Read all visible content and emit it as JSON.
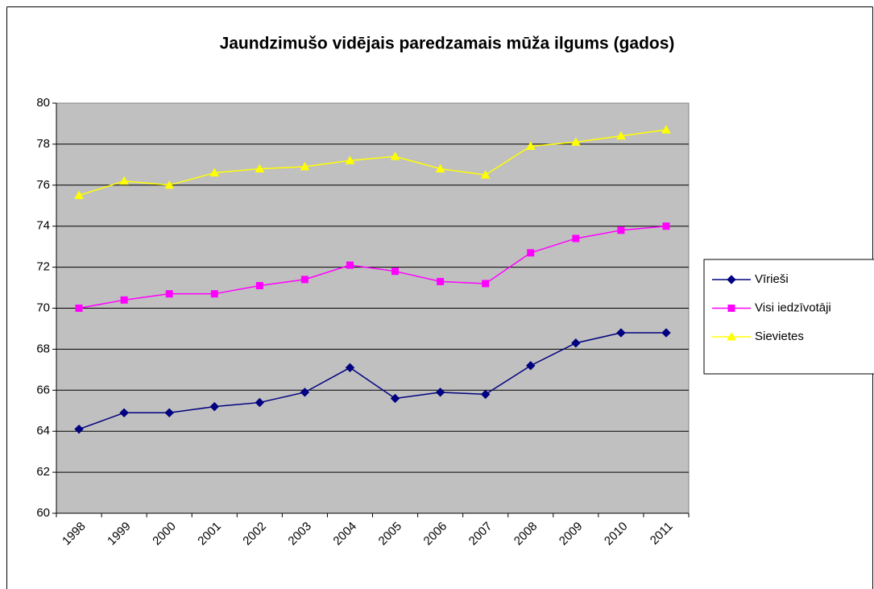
{
  "chart_data": {
    "type": "line",
    "title": "Jaundzimušo vidējais paredzamais mūža ilgums (gados)",
    "categories": [
      "1998",
      "1999",
      "2000",
      "2001",
      "2002",
      "2003",
      "2004",
      "2005",
      "2006",
      "2007",
      "2008",
      "2009",
      "2010",
      "2011"
    ],
    "series": [
      {
        "name": "Vīrieši",
        "color": "#000080",
        "marker": "diamond",
        "values": [
          64.1,
          64.9,
          64.9,
          65.2,
          65.4,
          65.9,
          67.1,
          65.6,
          65.9,
          65.8,
          67.2,
          68.3,
          68.8,
          68.8
        ]
      },
      {
        "name": "Visi iedzīvotāji",
        "color": "#ff00ff",
        "marker": "square",
        "values": [
          70.0,
          70.4,
          70.7,
          70.7,
          71.1,
          71.4,
          72.1,
          71.8,
          71.3,
          71.2,
          72.7,
          73.4,
          73.8,
          74.0
        ]
      },
      {
        "name": "Sievietes",
        "color": "#ffff00",
        "marker": "triangle",
        "values": [
          75.5,
          76.2,
          76.0,
          76.6,
          76.8,
          76.9,
          77.2,
          77.4,
          76.8,
          76.5,
          77.9,
          78.1,
          78.4,
          78.7
        ]
      }
    ],
    "ylim": [
      60,
      80
    ],
    "yticks": [
      60,
      62,
      64,
      66,
      68,
      70,
      72,
      74,
      76,
      78,
      80
    ],
    "grid": true,
    "legend": "right"
  }
}
